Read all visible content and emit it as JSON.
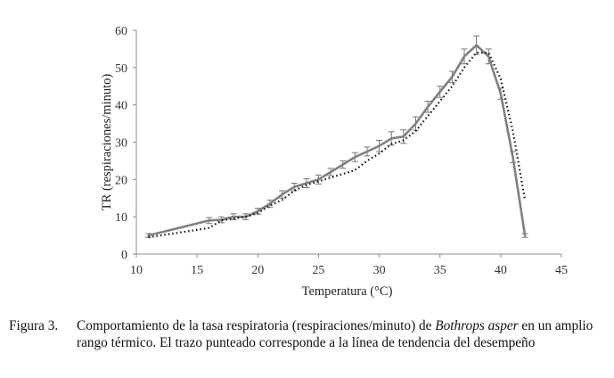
{
  "chart_data": {
    "type": "line",
    "xlabel": "Temperatura (°C)",
    "ylabel": "TR (respiraciones/minuto)",
    "xlim": [
      10,
      45
    ],
    "ylim": [
      0,
      60
    ],
    "xticks": [
      10,
      15,
      20,
      25,
      30,
      35,
      40,
      45
    ],
    "yticks": [
      0,
      10,
      20,
      30,
      40,
      50,
      60
    ],
    "grid": false,
    "series": [
      {
        "style": "solid",
        "color": "#808080",
        "x": [
          11,
          16,
          17,
          18,
          19,
          20,
          21,
          22,
          23,
          24,
          25,
          26,
          27,
          28,
          29,
          30,
          31,
          32,
          33,
          34,
          35,
          36,
          37,
          38,
          39,
          40,
          41,
          42
        ],
        "y": [
          5,
          9,
          9.2,
          10,
          10,
          11.5,
          13.5,
          16,
          18,
          19,
          20,
          22,
          24,
          26,
          27.5,
          29,
          31,
          31.5,
          35,
          39.5,
          43.5,
          47.5,
          53,
          56,
          53,
          43,
          26,
          5
        ],
        "error": [
          0.5,
          0.8,
          0.8,
          0.8,
          0.8,
          0.8,
          1,
          1,
          1,
          1.2,
          1.2,
          1,
          1,
          1.2,
          1.2,
          1.5,
          1.8,
          1.8,
          1.8,
          1.5,
          1.5,
          1.5,
          2,
          2.5,
          2,
          1.5,
          1.5,
          0.5
        ]
      },
      {
        "style": "dotted",
        "color": "#111111",
        "x": [
          11,
          16,
          17,
          18,
          19,
          20,
          21,
          22,
          23,
          24,
          25,
          26,
          27,
          28,
          29,
          30,
          31,
          32,
          33,
          34,
          35,
          36,
          37,
          38,
          39,
          40,
          41,
          42
        ],
        "y": [
          4.5,
          7,
          9,
          9.5,
          10,
          11,
          13,
          14.5,
          17,
          18.5,
          19.5,
          20.5,
          21.5,
          22.5,
          25,
          27,
          29.5,
          30.5,
          33,
          37,
          41,
          45,
          50,
          54,
          54,
          47,
          33,
          14.5
        ]
      }
    ]
  },
  "caption": {
    "label": "Figura 3.",
    "line1_before": "Comportamiento de la tasa respiratoria (respiraciones/minuto) de ",
    "species": "Bothrops asper",
    "line1_after": " en",
    "rest": "un amplio rango térmico. El trazo punteado corresponde a la línea de tendencia del desempeño"
  }
}
